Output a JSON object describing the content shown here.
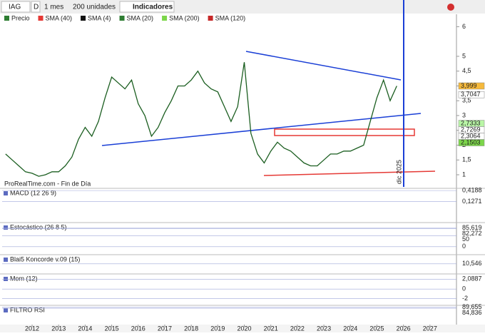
{
  "toolbar": {
    "symbol": "IAG",
    "period_short": "D",
    "period": "1 mes",
    "units": "200 unidades",
    "indicators": "Indicadores"
  },
  "chart_data": {
    "type": "line",
    "legend": [
      {
        "name": "Precio",
        "color": "#2e7d32"
      },
      {
        "name": "SMA (40)",
        "color": "#e53935"
      },
      {
        "name": "SMA (4)",
        "color": "#111111"
      },
      {
        "name": "SMA (20)",
        "color": "#2e7d32"
      },
      {
        "name": "SMA (200)",
        "color": "#7cd64a"
      },
      {
        "name": "SMA (120)",
        "color": "#c62828"
      }
    ],
    "x": [
      2011.0,
      2011.25,
      2011.5,
      2011.75,
      2012.0,
      2012.25,
      2012.5,
      2012.75,
      2013.0,
      2013.25,
      2013.5,
      2013.75,
      2014.0,
      2014.25,
      2014.5,
      2014.75,
      2015.0,
      2015.25,
      2015.5,
      2015.75,
      2016.0,
      2016.25,
      2016.5,
      2016.75,
      2017.0,
      2017.25,
      2017.5,
      2017.75,
      2018.0,
      2018.25,
      2018.5,
      2018.75,
      2019.0,
      2019.25,
      2019.5,
      2019.75,
      2020.0,
      2020.25,
      2020.5,
      2020.75,
      2021.0,
      2021.25,
      2021.5,
      2021.75,
      2022.0,
      2022.25,
      2022.5,
      2022.75,
      2023.0,
      2023.25,
      2023.5,
      2023.75,
      2024.0,
      2024.25,
      2024.5,
      2024.75,
      2025.0,
      2025.25,
      2025.5,
      2025.75
    ],
    "series": [
      {
        "name": "Precio",
        "color": "#1b5e20",
        "values": [
          1.7,
          1.5,
          1.3,
          1.1,
          1.05,
          0.95,
          1.0,
          1.1,
          1.1,
          1.3,
          1.6,
          2.2,
          2.6,
          2.3,
          2.8,
          3.6,
          4.3,
          4.1,
          3.9,
          4.2,
          3.4,
          3.0,
          2.3,
          2.6,
          3.1,
          3.5,
          4.0,
          4.0,
          4.2,
          4.5,
          4.1,
          3.9,
          3.8,
          3.3,
          2.8,
          3.3,
          4.8,
          2.4,
          1.7,
          1.4,
          1.8,
          2.1,
          1.9,
          1.8,
          1.6,
          1.4,
          1.3,
          1.3,
          1.5,
          1.7,
          1.7,
          1.8,
          1.8,
          1.9,
          2.0,
          2.8,
          3.6,
          4.2,
          3.5,
          3.999
        ]
      }
    ],
    "xlim": [
      2010.87,
      2028.0
    ],
    "xticks": [
      2012,
      2013,
      2014,
      2015,
      2016,
      2017,
      2018,
      2019,
      2020,
      2021,
      2022,
      2023,
      2024,
      2025,
      2026,
      2027
    ],
    "ylim": [
      0.59,
      6.42
    ],
    "yticks": [
      6,
      5,
      {
        "value": 4.5,
        "label": "4,5"
      },
      4,
      {
        "value": 3.5,
        "label": "3,5"
      },
      3,
      {
        "value": 2.5,
        "label": "2,5"
      },
      2,
      {
        "value": 1.5,
        "label": "1,5"
      },
      1
    ],
    "last_values": [
      {
        "value": 3.999,
        "label": "3,999",
        "color": "#f6b93b"
      },
      {
        "value": 3.7047,
        "label": "3,7047",
        "color": "#ffffff"
      },
      {
        "value": 2.7333,
        "label": "2,7333",
        "color": "#b9f6a6"
      },
      {
        "value": 2.7269,
        "label": "2,7269",
        "color": "#ffffff"
      },
      {
        "value": 2.3064,
        "label": "2,3064",
        "color": "#ffffff"
      },
      {
        "value": 2.1503,
        "label": "2,1503",
        "color": "#7cd64a"
      }
    ],
    "source": "ProRealTime.com - Fin de Día",
    "marker_label": "dic 2025"
  },
  "panels": [
    {
      "title": "MACD (12 26 9)",
      "ylim": [
        -0.009,
        0.477
      ],
      "ticks": [
        {
          "value": 0.4188,
          "label": "0,4188"
        },
        {
          "value": 0.1271,
          "label": "0,1271"
        }
      ]
    },
    {
      "title": "Estocástico (26 8 5)",
      "ylim": [
        -20,
        110
      ],
      "ticks": [
        {
          "value": 85.619,
          "label": "85,619"
        },
        {
          "value": 82.272,
          "label": "82,272"
        },
        50,
        0
      ]
    },
    {
      "title": "Blai5 Koncorde v.09 (15)",
      "ylim": [
        -40,
        60
      ],
      "ticks": [
        {
          "value": 10.546,
          "label": "10,546"
        }
      ]
    },
    {
      "title": "Mom (12)",
      "ylim": [
        -3.3,
        3.2
      ],
      "ticks": [
        {
          "value": 2.0887,
          "label": "2,0887"
        },
        0,
        -2
      ]
    },
    {
      "title": "FILTRO RSI",
      "ylim": [
        0,
        100
      ],
      "ticks": [
        {
          "value": 89.655,
          "label": "89,655"
        },
        {
          "value": 84.836,
          "label": "84,836"
        }
      ]
    }
  ]
}
